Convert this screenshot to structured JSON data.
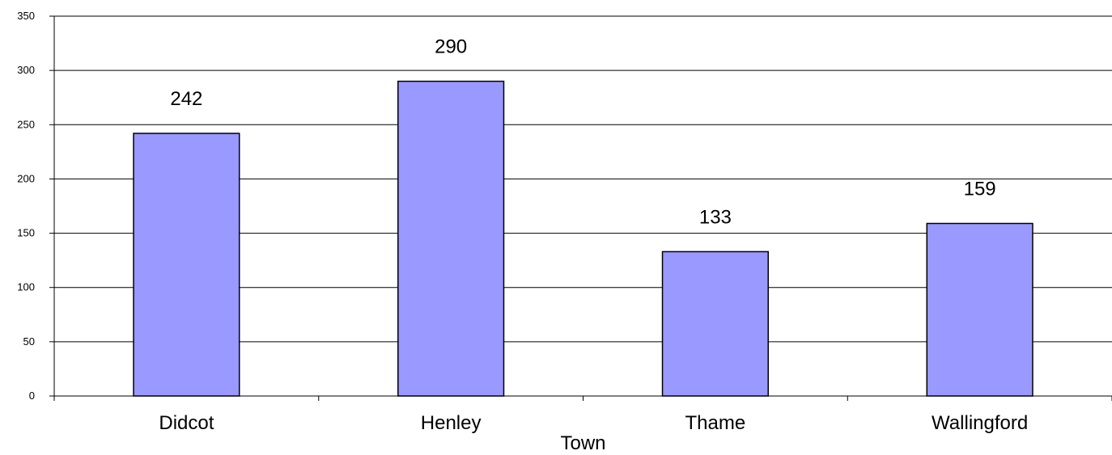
{
  "chart_data": {
    "type": "bar",
    "title": "",
    "xlabel": "Town",
    "ylabel": "",
    "categories": [
      "Didcot",
      "Henley",
      "Thame",
      "Wallingford"
    ],
    "values": [
      242,
      290,
      133,
      159
    ],
    "data_labels": [
      "242",
      "290",
      "133",
      "159"
    ],
    "ylim": [
      0,
      350
    ],
    "yticks": [
      0,
      50,
      100,
      150,
      200,
      250,
      300,
      350
    ],
    "grid": true,
    "legend": "none",
    "bar_color": "#9999ff"
  }
}
